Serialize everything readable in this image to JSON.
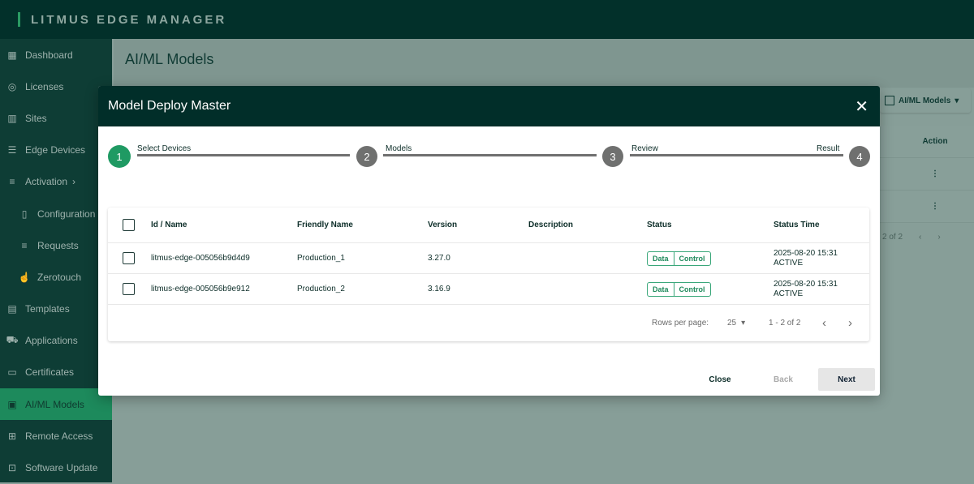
{
  "app": {
    "brand": "LITMUS EDGE MANAGER"
  },
  "sidebar": {
    "items": [
      {
        "label": "Dashboard",
        "icon": "dashboard-icon"
      },
      {
        "label": "Licenses",
        "icon": "license-icon"
      },
      {
        "label": "Sites",
        "icon": "sites-icon"
      },
      {
        "label": "Edge Devices",
        "icon": "list-icon"
      },
      {
        "label": "Activation",
        "icon": "activation-icon",
        "chevron": "›"
      },
      {
        "label": "Configuration",
        "icon": "configuration-icon",
        "sub": true
      },
      {
        "label": "Requests",
        "icon": "requests-icon",
        "sub": true
      },
      {
        "label": "Zerotouch",
        "icon": "zerotouch-icon",
        "sub": true
      },
      {
        "label": "Templates",
        "icon": "templates-icon"
      },
      {
        "label": "Applications",
        "icon": "applications-icon"
      },
      {
        "label": "Certificates",
        "icon": "certificates-icon"
      },
      {
        "label": "AI/ML Models",
        "icon": "aiml-icon",
        "active": true
      },
      {
        "label": "Remote Access",
        "icon": "remote-access-icon"
      },
      {
        "label": "Software Update",
        "icon": "software-update-icon"
      }
    ]
  },
  "page": {
    "title": "AI/ML Models",
    "dropdown": "AI/ML Models",
    "action_header": "Action",
    "pagination": "2 of 2"
  },
  "modal": {
    "title": "Model Deploy Master",
    "steps": [
      {
        "num": "1",
        "label": "Select Devices"
      },
      {
        "num": "2",
        "label": "Models"
      },
      {
        "num": "3",
        "label": "Review"
      },
      {
        "num": "4",
        "label": "Result"
      }
    ],
    "columns": [
      "Id / Name",
      "Friendly Name",
      "Version",
      "Description",
      "Status",
      "Status Time"
    ],
    "rows": [
      {
        "id": "litmus-edge-005056b9d4d9",
        "friendly": "Production_1",
        "version": "3.27.0",
        "description": "",
        "status": [
          "Data",
          "Control"
        ],
        "time": "2025-08-20 15:31",
        "state": "ACTIVE"
      },
      {
        "id": "litmus-edge-005056b9e912",
        "friendly": "Production_2",
        "version": "3.16.9",
        "description": "",
        "status": [
          "Data",
          "Control"
        ],
        "time": "2025-08-20 15:31",
        "state": "ACTIVE"
      }
    ],
    "pagination": {
      "rows_label": "Rows per page:",
      "rows_value": "25",
      "range": "1 - 2 of 2"
    },
    "buttons": {
      "close": "Close",
      "back": "Back",
      "next": "Next"
    }
  },
  "colors": {
    "accent": "#1f9a63",
    "header": "#012e29"
  }
}
